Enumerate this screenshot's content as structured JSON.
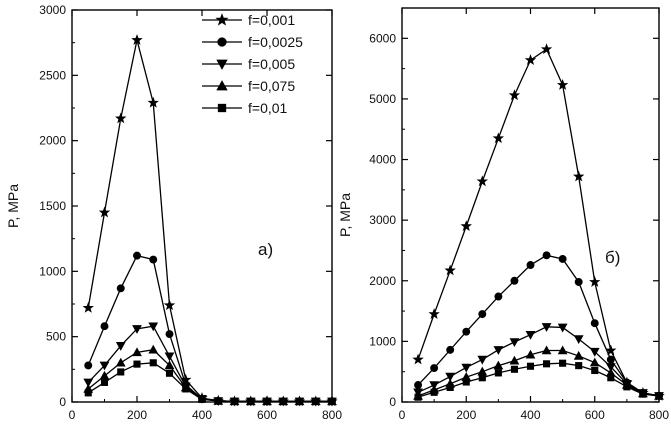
{
  "chart_data": [
    {
      "type": "line",
      "panel_label": "a)",
      "ylabel": "P, MPa",
      "xlabel": "",
      "xlim": [
        0,
        800
      ],
      "ylim": [
        0,
        3000
      ],
      "x_ticks": [
        "0",
        "200",
        "400",
        "600",
        "800"
      ],
      "y_ticks": [
        "0",
        "500",
        "1000",
        "1500",
        "2000",
        "2500",
        "3000"
      ],
      "legend_position": "top-right",
      "series": [
        {
          "name": "f=0,001",
          "marker": "star",
          "x": [
            50,
            100,
            150,
            200,
            250,
            300,
            350,
            400,
            450,
            500,
            550,
            600,
            650,
            700,
            750,
            800
          ],
          "y": [
            720,
            1450,
            2170,
            2770,
            2290,
            740,
            170,
            30,
            10,
            5,
            5,
            5,
            5,
            5,
            5,
            5
          ]
        },
        {
          "name": "f=0,0025",
          "marker": "circle",
          "x": [
            50,
            100,
            150,
            200,
            250,
            300,
            350,
            400,
            450,
            500,
            550,
            600,
            650,
            700,
            750,
            800
          ],
          "y": [
            280,
            580,
            870,
            1120,
            1090,
            520,
            130,
            25,
            8,
            5,
            5,
            5,
            5,
            5,
            5,
            5
          ]
        },
        {
          "name": "f=0,005",
          "marker": "triangle-down",
          "x": [
            50,
            100,
            150,
            200,
            250,
            300,
            350,
            400,
            450,
            500,
            550,
            600,
            650,
            700,
            750,
            800
          ],
          "y": [
            150,
            280,
            430,
            560,
            580,
            350,
            120,
            25,
            8,
            5,
            5,
            5,
            5,
            5,
            5,
            5
          ]
        },
        {
          "name": "f=0,075",
          "marker": "triangle-up",
          "x": [
            50,
            100,
            150,
            200,
            250,
            300,
            350,
            400,
            450,
            500,
            550,
            600,
            650,
            700,
            750,
            800
          ],
          "y": [
            100,
            200,
            300,
            380,
            400,
            280,
            110,
            25,
            8,
            5,
            5,
            5,
            5,
            5,
            5,
            5
          ]
        },
        {
          "name": "f=0,01",
          "marker": "square",
          "x": [
            50,
            100,
            150,
            200,
            250,
            300,
            350,
            400,
            450,
            500,
            550,
            600,
            650,
            700,
            750,
            800
          ],
          "y": [
            70,
            150,
            230,
            290,
            300,
            220,
            100,
            20,
            8,
            5,
            5,
            5,
            5,
            5,
            5,
            5
          ]
        }
      ]
    },
    {
      "type": "line",
      "panel_label": "б)",
      "ylabel": "P, MPa",
      "xlabel": "",
      "xlim": [
        0,
        800
      ],
      "ylim": [
        0,
        6500
      ],
      "x_ticks": [
        "0",
        "200",
        "400",
        "600",
        "800"
      ],
      "y_ticks": [
        "0",
        "1000",
        "2000",
        "3000",
        "4000",
        "5000",
        "6000"
      ],
      "series": [
        {
          "name": "f=0,001",
          "marker": "star",
          "x": [
            50,
            100,
            150,
            200,
            250,
            300,
            350,
            400,
            450,
            500,
            550,
            600,
            650,
            700,
            750,
            800
          ],
          "y": [
            700,
            1450,
            2170,
            2900,
            3640,
            4350,
            5060,
            5640,
            5820,
            5230,
            3720,
            1980,
            850,
            320,
            150,
            100
          ]
        },
        {
          "name": "f=0,0025",
          "marker": "circle",
          "x": [
            50,
            100,
            150,
            200,
            250,
            300,
            350,
            400,
            450,
            500,
            550,
            600,
            650,
            700,
            750,
            800
          ],
          "y": [
            280,
            560,
            860,
            1160,
            1450,
            1740,
            2000,
            2260,
            2420,
            2360,
            1980,
            1300,
            700,
            320,
            150,
            100
          ]
        },
        {
          "name": "f=0,005",
          "marker": "triangle-down",
          "x": [
            50,
            100,
            150,
            200,
            250,
            300,
            350,
            400,
            450,
            500,
            550,
            600,
            650,
            700,
            750,
            800
          ],
          "y": [
            160,
            280,
            420,
            570,
            700,
            860,
            990,
            1110,
            1240,
            1230,
            1040,
            830,
            580,
            300,
            150,
            100
          ]
        },
        {
          "name": "f=0,075",
          "marker": "triangle-up",
          "x": [
            50,
            100,
            150,
            200,
            250,
            300,
            350,
            400,
            450,
            500,
            550,
            600,
            650,
            700,
            750,
            800
          ],
          "y": [
            100,
            200,
            300,
            410,
            500,
            600,
            680,
            780,
            850,
            850,
            760,
            650,
            480,
            280,
            140,
            100
          ]
        },
        {
          "name": "f=0,01",
          "marker": "square",
          "x": [
            50,
            100,
            150,
            200,
            250,
            300,
            350,
            400,
            450,
            500,
            550,
            600,
            650,
            700,
            750,
            800
          ],
          "y": [
            80,
            160,
            240,
            330,
            400,
            480,
            540,
            590,
            630,
            640,
            600,
            520,
            400,
            250,
            130,
            100
          ]
        }
      ]
    }
  ]
}
